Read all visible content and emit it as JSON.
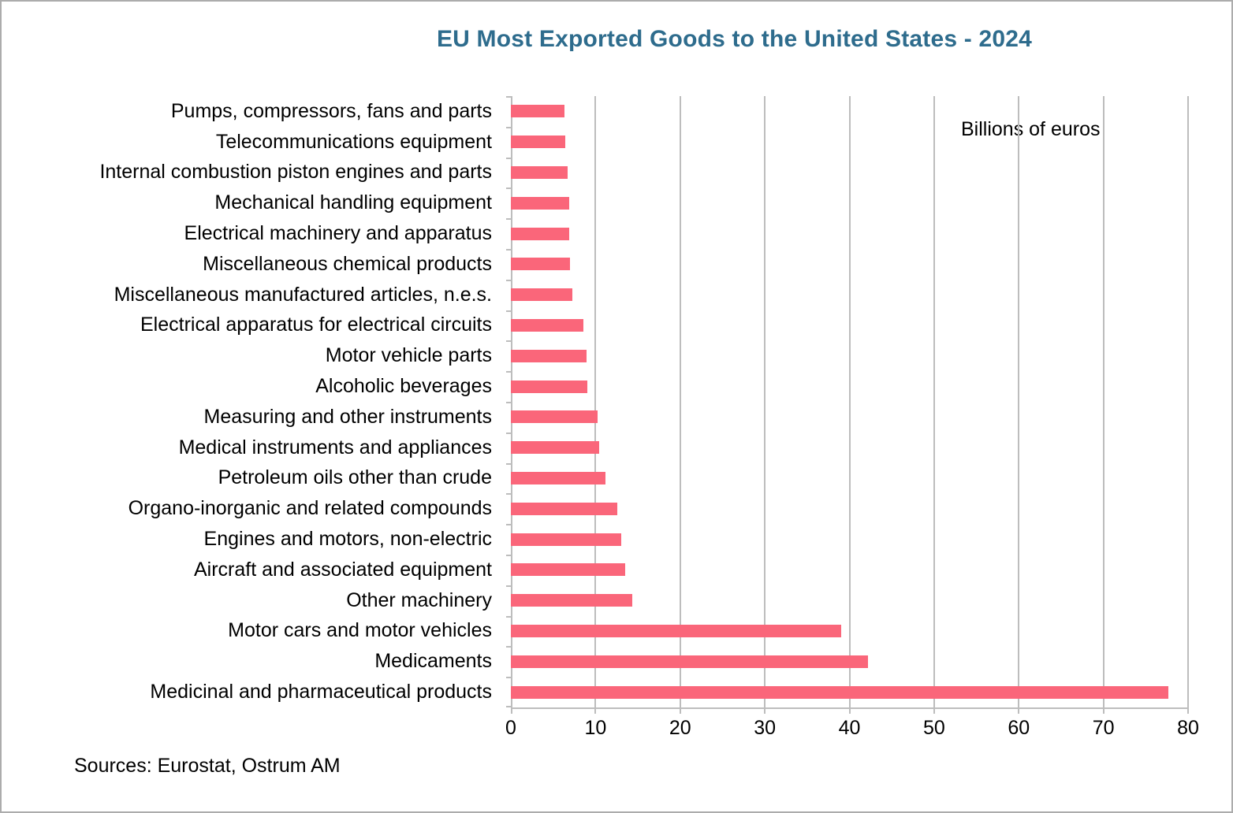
{
  "colors": {
    "bar": "#FA667A",
    "title": "#2E6C8D",
    "grid": "#BDBDBD",
    "axis": "#ACACAC",
    "text": "#000000"
  },
  "chart_data": {
    "type": "bar",
    "orientation": "horizontal",
    "title": "EU Most Exported Goods to the United States - 2024",
    "unit_label": "Billions of euros",
    "source": "Sources: Eurostat, Ostrum AM",
    "categories": [
      "Pumps, compressors, fans and parts",
      "Telecommunications equipment",
      "Internal combustion piston engines and parts",
      "Mechanical handling equipment",
      "Electrical machinery and apparatus",
      "Miscellaneous chemical products",
      "Miscellaneous manufactured articles, n.e.s.",
      "Electrical apparatus for electrical circuits",
      "Motor vehicle parts",
      "Alcoholic beverages",
      "Measuring and other instruments",
      "Medical instruments and appliances",
      "Petroleum oils other than crude",
      "Organo-inorganic and related compounds",
      "Engines and motors, non-electric",
      "Aircraft and associated equipment",
      "Other machinery",
      "Motor cars and motor vehicles",
      "Medicaments",
      "Medicinal and pharmaceutical products"
    ],
    "values": [
      6.3,
      6.4,
      6.7,
      6.9,
      6.9,
      7.0,
      7.3,
      8.6,
      8.9,
      9.0,
      10.2,
      10.4,
      11.2,
      12.6,
      13.0,
      13.5,
      14.3,
      39.0,
      42.2,
      77.7
    ],
    "xlim": [
      0,
      80
    ],
    "xticks": [
      0,
      10,
      20,
      30,
      40,
      50,
      60,
      70,
      80
    ],
    "grid": true,
    "legend": "none",
    "value_axis_position": "bottom"
  }
}
